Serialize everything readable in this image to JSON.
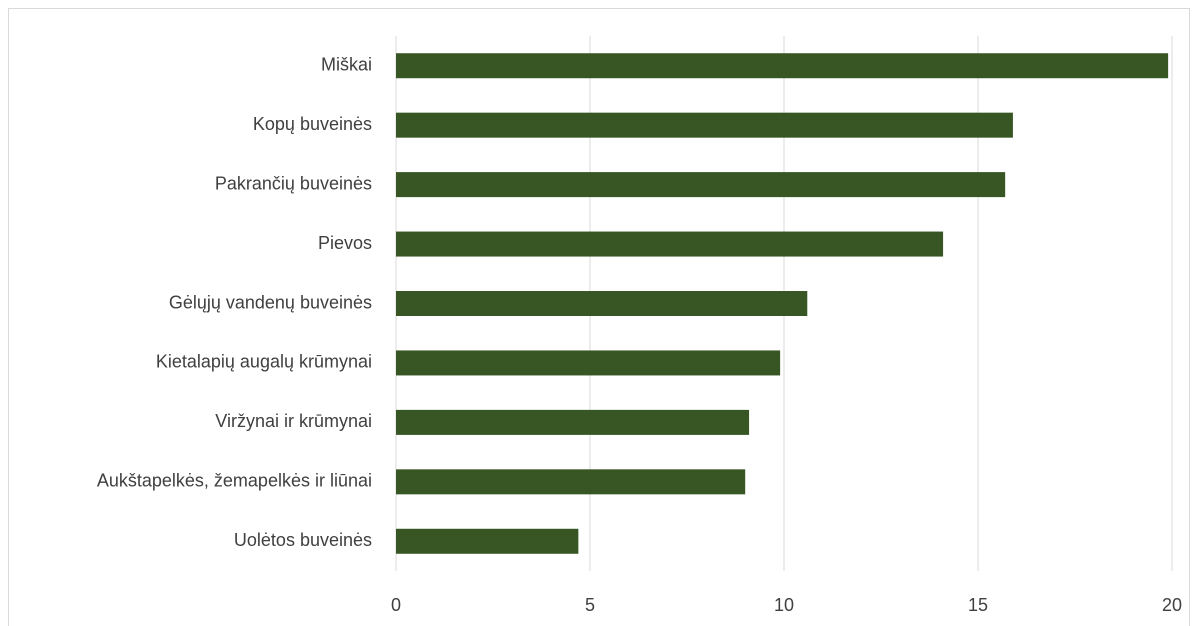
{
  "chart_data": {
    "type": "bar",
    "orientation": "horizontal",
    "categories": [
      "Miškai",
      "Kopų buveinės",
      "Pakrančių buveinės",
      "Pievos",
      "Gėlųjų vandenų buveinės",
      "Kietalapių augalų krūmynai",
      "Viržynai ir krūmynai",
      "Aukštapelkės, žemapelkės ir liūnai",
      "Uolėtos buveinės"
    ],
    "values": [
      19.9,
      15.9,
      15.7,
      14.1,
      10.6,
      9.9,
      9.1,
      9.0,
      4.7
    ],
    "color": "#375623",
    "xlim": [
      0,
      20
    ],
    "xticks": [
      0,
      5,
      10,
      15,
      20
    ],
    "grid": true
  }
}
